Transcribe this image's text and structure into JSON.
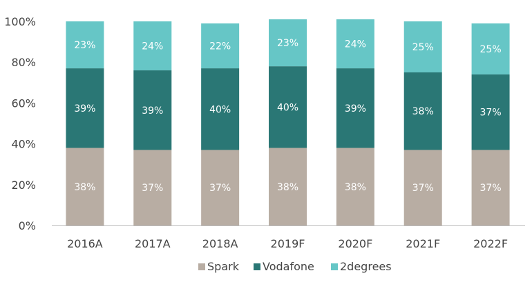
{
  "chart_data": {
    "type": "bar",
    "stacked": true,
    "categories": [
      "2016A",
      "2017A",
      "2018A",
      "2019F",
      "2020F",
      "2021F",
      "2022F"
    ],
    "series": [
      {
        "name": "Spark",
        "color": "#b8ada3",
        "values": [
          38,
          37,
          37,
          38,
          38,
          37,
          37
        ]
      },
      {
        "name": "Vodafone",
        "color": "#2a7775",
        "values": [
          39,
          39,
          40,
          40,
          39,
          38,
          37
        ]
      },
      {
        "name": "2degrees",
        "color": "#66c6c6",
        "values": [
          23,
          24,
          22,
          23,
          24,
          25,
          25
        ]
      }
    ],
    "ylim": [
      0,
      100
    ],
    "yticks": [
      "0%",
      "20%",
      "40%",
      "60%",
      "80%",
      "100%"
    ],
    "data_label_suffix": "%",
    "grid": false,
    "legend": "bottom"
  }
}
